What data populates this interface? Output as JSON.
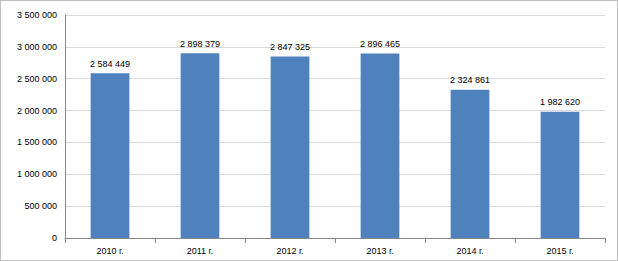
{
  "chart_data": {
    "type": "bar",
    "categories": [
      "2010 г.",
      "2011 г.",
      "2012 г.",
      "2013 г.",
      "2014 г.",
      "2015 г."
    ],
    "values": [
      2584449,
      2898379,
      2847325,
      2896465,
      2324861,
      1982620
    ],
    "value_labels": [
      "2 584 449",
      "2 898 379",
      "2 847 325",
      "2 896 465",
      "2 324 861",
      "1 982 620"
    ],
    "color": "#4f81bd",
    "ylim": [
      0,
      3500000
    ],
    "yticks": [
      0,
      {
        "value": 500000,
        "label": "500 000"
      },
      {
        "value": 1000000,
        "label": "1 000 000"
      },
      {
        "value": 1500000,
        "label": "1 500 000"
      },
      {
        "value": 2000000,
        "label": "2 000 000"
      },
      {
        "value": 2500000,
        "label": "2 500 000"
      },
      {
        "value": 3000000,
        "label": "3 000 000"
      },
      {
        "value": 3500000,
        "label": "3 500 000"
      }
    ],
    "grid": true,
    "data_labels": true
  }
}
